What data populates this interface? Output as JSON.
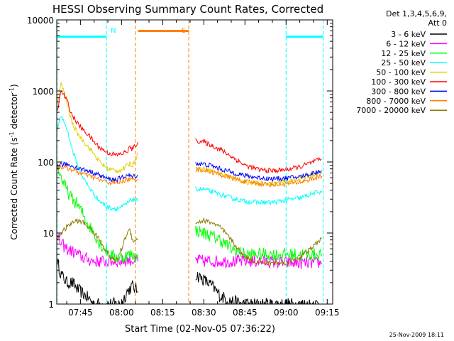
{
  "chart_data": {
    "type": "line",
    "title": "HESSI Observing Summary Count Rates, Corrected",
    "xlabel": "Start Time (02-Nov-05 07:36:22)",
    "ylabel": "Corrected Count Rate (s⁻¹ detector⁻¹)",
    "ylabel_parts": {
      "main": "Corrected Count Rate (s",
      "exp1": "-1",
      "mid": " detector",
      "exp2": "-1",
      "end": ")"
    },
    "yscale": "log",
    "ylim": [
      1,
      10000
    ],
    "xlim_minutes": [
      "07:36:22",
      "09:17:00"
    ],
    "x_ticks": [
      "07:45",
      "08:00",
      "08:15",
      "08:30",
      "08:45",
      "09:00",
      "09:15"
    ],
    "y_ticks": [
      {
        "value": 1,
        "label": "1"
      },
      {
        "value": 10,
        "label": "10"
      },
      {
        "value": 100,
        "label": "100"
      },
      {
        "value": 1000,
        "label": "1000"
      },
      {
        "value": 10000,
        "label": "10000"
      }
    ],
    "legend_placement": "right, outside plot",
    "legend_header": [
      "Det 1,3,4,5,6,9,",
      "Att 0"
    ],
    "data_gaps": [
      [
        "08:06:00",
        "08:27:00"
      ]
    ],
    "series": [
      {
        "name": "3 - 6 keV",
        "color": "#000000",
        "points": [
          [
            "07:36:30",
            4
          ],
          [
            "07:38:00",
            2.6
          ],
          [
            "07:40:00",
            2
          ],
          [
            "07:42:00",
            2
          ],
          [
            "07:44:00",
            1.6
          ],
          [
            "07:46:00",
            1.4
          ],
          [
            "07:48:00",
            1.2
          ],
          [
            "07:50:00",
            1
          ],
          [
            "07:55:00",
            1
          ],
          [
            "08:00:00",
            1
          ],
          [
            "08:02:00",
            1.5
          ],
          [
            "08:04:00",
            1.8
          ],
          [
            "08:06:00",
            1.5
          ],
          [
            "08:27:00",
            2.6
          ],
          [
            "08:30:00",
            2.2
          ],
          [
            "08:33:00",
            1.8
          ],
          [
            "08:36:00",
            1.3
          ],
          [
            "08:40:00",
            1.1
          ],
          [
            "08:45:00",
            1
          ],
          [
            "08:50:00",
            1
          ],
          [
            "09:00:00",
            1
          ],
          [
            "09:10:00",
            1
          ],
          [
            "09:13:00",
            1
          ]
        ]
      },
      {
        "name": "6 - 12 keV",
        "color": "#ff00ff",
        "points": [
          [
            "07:36:30",
            9
          ],
          [
            "07:38:00",
            7
          ],
          [
            "07:40:00",
            6
          ],
          [
            "07:42:00",
            5.5
          ],
          [
            "07:44:00",
            5
          ],
          [
            "07:46:00",
            4.5
          ],
          [
            "07:50:00",
            4
          ],
          [
            "07:55:00",
            4
          ],
          [
            "08:00:00",
            4
          ],
          [
            "08:03:00",
            4.2
          ],
          [
            "08:06:00",
            4
          ],
          [
            "08:27:00",
            4.2
          ],
          [
            "08:30:00",
            4
          ],
          [
            "08:40:00",
            4
          ],
          [
            "08:50:00",
            4
          ],
          [
            "09:00:00",
            3.8
          ],
          [
            "09:10:00",
            3.8
          ],
          [
            "09:13:00",
            3.8
          ]
        ]
      },
      {
        "name": "12 - 25 keV",
        "color": "#00ff00",
        "points": [
          [
            "07:36:30",
            90
          ],
          [
            "07:38:00",
            60
          ],
          [
            "07:40:00",
            40
          ],
          [
            "07:42:00",
            30
          ],
          [
            "07:44:00",
            25
          ],
          [
            "07:46:00",
            18
          ],
          [
            "07:48:00",
            13
          ],
          [
            "07:50:00",
            10
          ],
          [
            "07:52:00",
            7
          ],
          [
            "07:54:00",
            6
          ],
          [
            "07:56:00",
            5
          ],
          [
            "07:58:00",
            4.5
          ],
          [
            "08:00:00",
            4.5
          ],
          [
            "08:03:00",
            5
          ],
          [
            "08:06:00",
            4.5
          ],
          [
            "08:27:00",
            11
          ],
          [
            "08:30:00",
            10
          ],
          [
            "08:33:00",
            9
          ],
          [
            "08:36:00",
            8
          ],
          [
            "08:40:00",
            6
          ],
          [
            "08:45:00",
            5
          ],
          [
            "08:50:00",
            5
          ],
          [
            "08:55:00",
            5
          ],
          [
            "09:00:00",
            5
          ],
          [
            "09:05:00",
            5
          ],
          [
            "09:10:00",
            5
          ],
          [
            "09:13:00",
            5
          ]
        ]
      },
      {
        "name": "25 - 50 keV",
        "color": "#00ffff",
        "points": [
          [
            "07:36:30",
            280
          ],
          [
            "07:38:00",
            450
          ],
          [
            "07:40:00",
            300
          ],
          [
            "07:42:00",
            150
          ],
          [
            "07:44:00",
            90
          ],
          [
            "07:46:00",
            60
          ],
          [
            "07:48:00",
            45
          ],
          [
            "07:50:00",
            35
          ],
          [
            "07:52:00",
            28
          ],
          [
            "07:55:00",
            23
          ],
          [
            "07:58:00",
            22
          ],
          [
            "08:00:00",
            23
          ],
          [
            "08:02:00",
            26
          ],
          [
            "08:04:00",
            30
          ],
          [
            "08:06:00",
            28
          ],
          [
            "08:27:00",
            42
          ],
          [
            "08:30:00",
            41
          ],
          [
            "08:33:00",
            38
          ],
          [
            "08:36:00",
            35
          ],
          [
            "08:40:00",
            31
          ],
          [
            "08:45:00",
            28
          ],
          [
            "08:50:00",
            27
          ],
          [
            "08:55:00",
            27
          ],
          [
            "09:00:00",
            29
          ],
          [
            "09:05:00",
            31
          ],
          [
            "09:10:00",
            36
          ],
          [
            "09:13:00",
            39
          ]
        ]
      },
      {
        "name": "50 - 100 keV",
        "color": "#e0d000",
        "points": [
          [
            "07:36:30",
            600
          ],
          [
            "07:38:00",
            1300
          ],
          [
            "07:40:00",
            700
          ],
          [
            "07:42:00",
            350
          ],
          [
            "07:44:00",
            250
          ],
          [
            "07:46:00",
            200
          ],
          [
            "07:48:00",
            160
          ],
          [
            "07:50:00",
            130
          ],
          [
            "07:52:00",
            100
          ],
          [
            "07:55:00",
            80
          ],
          [
            "07:58:00",
            75
          ],
          [
            "08:00:00",
            78
          ],
          [
            "08:02:00",
            88
          ],
          [
            "08:03:00",
            95
          ],
          [
            "08:04:00",
            90
          ],
          [
            "08:05:00",
            110
          ],
          [
            "08:06:00",
            130
          ],
          [
            "08:27:00",
            82
          ],
          [
            "08:30:00",
            80
          ],
          [
            "08:33:00",
            75
          ],
          [
            "08:36:00",
            70
          ],
          [
            "08:40:00",
            60
          ],
          [
            "08:45:00",
            52
          ],
          [
            "08:50:00",
            50
          ],
          [
            "08:55:00",
            50
          ],
          [
            "09:00:00",
            52
          ],
          [
            "09:05:00",
            58
          ],
          [
            "09:10:00",
            66
          ],
          [
            "09:13:00",
            72
          ]
        ]
      },
      {
        "name": "100 - 300 keV",
        "color": "#ff0000",
        "points": [
          [
            "07:36:30",
            500
          ],
          [
            "07:38:00",
            1000
          ],
          [
            "07:40:00",
            750
          ],
          [
            "07:42:00",
            450
          ],
          [
            "07:44:00",
            350
          ],
          [
            "07:46:00",
            280
          ],
          [
            "07:48:00",
            240
          ],
          [
            "07:50:00",
            190
          ],
          [
            "07:52:00",
            160
          ],
          [
            "07:55:00",
            135
          ],
          [
            "07:58:00",
            125
          ],
          [
            "08:00:00",
            130
          ],
          [
            "08:02:00",
            140
          ],
          [
            "08:03:00",
            160
          ],
          [
            "08:04:00",
            150
          ],
          [
            "08:05:00",
            170
          ],
          [
            "08:06:00",
            190
          ],
          [
            "08:27:00",
            200
          ],
          [
            "08:30:00",
            190
          ],
          [
            "08:33:00",
            170
          ],
          [
            "08:36:00",
            150
          ],
          [
            "08:40:00",
            120
          ],
          [
            "08:45:00",
            90
          ],
          [
            "08:50:00",
            78
          ],
          [
            "08:55:00",
            75
          ],
          [
            "09:00:00",
            78
          ],
          [
            "09:05:00",
            85
          ],
          [
            "09:10:00",
            100
          ],
          [
            "09:13:00",
            110
          ]
        ]
      },
      {
        "name": "300 - 800 keV",
        "color": "#0000ff",
        "points": [
          [
            "07:36:30",
            88
          ],
          [
            "07:38:00",
            92
          ],
          [
            "07:40:00",
            92
          ],
          [
            "07:42:00",
            88
          ],
          [
            "07:44:00",
            82
          ],
          [
            "07:46:00",
            78
          ],
          [
            "07:48:00",
            75
          ],
          [
            "07:50:00",
            70
          ],
          [
            "07:52:00",
            65
          ],
          [
            "07:55:00",
            58
          ],
          [
            "07:58:00",
            56
          ],
          [
            "08:00:00",
            60
          ],
          [
            "08:02:00",
            65
          ],
          [
            "08:04:00",
            62
          ],
          [
            "08:06:00",
            65
          ],
          [
            "08:27:00",
            95
          ],
          [
            "08:30:00",
            93
          ],
          [
            "08:33:00",
            88
          ],
          [
            "08:36:00",
            80
          ],
          [
            "08:40:00",
            72
          ],
          [
            "08:45:00",
            64
          ],
          [
            "08:50:00",
            60
          ],
          [
            "08:55:00",
            58
          ],
          [
            "09:00:00",
            59
          ],
          [
            "09:05:00",
            62
          ],
          [
            "09:10:00",
            70
          ],
          [
            "09:13:00",
            76
          ]
        ]
      },
      {
        "name": "800 - 7000 keV",
        "color": "#ff8000",
        "points": [
          [
            "07:36:30",
            85
          ],
          [
            "07:38:00",
            85
          ],
          [
            "07:40:00",
            82
          ],
          [
            "07:42:00",
            78
          ],
          [
            "07:44:00",
            72
          ],
          [
            "07:46:00",
            68
          ],
          [
            "07:48:00",
            64
          ],
          [
            "07:50:00",
            60
          ],
          [
            "07:52:00",
            56
          ],
          [
            "07:55:00",
            52
          ],
          [
            "07:58:00",
            50
          ],
          [
            "08:00:00",
            53
          ],
          [
            "08:02:00",
            57
          ],
          [
            "08:04:00",
            56
          ],
          [
            "08:06:00",
            58
          ],
          [
            "08:27:00",
            78
          ],
          [
            "08:30:00",
            77
          ],
          [
            "08:33:00",
            72
          ],
          [
            "08:36:00",
            66
          ],
          [
            "08:40:00",
            60
          ],
          [
            "08:45:00",
            53
          ],
          [
            "08:50:00",
            50
          ],
          [
            "08:55:00",
            48
          ],
          [
            "09:00:00",
            49
          ],
          [
            "09:05:00",
            52
          ],
          [
            "09:10:00",
            58
          ],
          [
            "09:13:00",
            63
          ]
        ]
      },
      {
        "name": "7000 - 20000 keV",
        "color": "#8b7a00",
        "points": [
          [
            "07:36:30",
            8
          ],
          [
            "07:38:00",
            10
          ],
          [
            "07:40:00",
            12
          ],
          [
            "07:42:00",
            14
          ],
          [
            "07:44:00",
            15
          ],
          [
            "07:46:00",
            14
          ],
          [
            "07:48:00",
            12
          ],
          [
            "07:50:00",
            10
          ],
          [
            "07:52:00",
            8
          ],
          [
            "07:54:00",
            6
          ],
          [
            "07:56:00",
            4.5
          ],
          [
            "07:58:00",
            4
          ],
          [
            "08:00:00",
            6
          ],
          [
            "08:02:00",
            10
          ],
          [
            "08:03:00",
            11
          ],
          [
            "08:04:00",
            8
          ],
          [
            "08:06:00",
            8
          ],
          [
            "08:27:00",
            14
          ],
          [
            "08:30:00",
            15
          ],
          [
            "08:33:00",
            14
          ],
          [
            "08:36:00",
            12
          ],
          [
            "08:40:00",
            8
          ],
          [
            "08:44:00",
            5
          ],
          [
            "08:48:00",
            4
          ],
          [
            "08:52:00",
            3.8
          ],
          [
            "08:56:00",
            3.8
          ],
          [
            "09:00:00",
            3.8
          ],
          [
            "09:05:00",
            4.5
          ],
          [
            "09:10:00",
            6.5
          ],
          [
            "09:13:00",
            8.5
          ]
        ]
      }
    ],
    "spacecraft_flags": [
      {
        "label": "N",
        "color": "#00ffff",
        "bars": [
          [
            "07:36:22",
            "07:54:30"
          ],
          [
            "09:00:00",
            "09:13:30"
          ]
        ],
        "bar_level": 5800,
        "markers": [
          "07:36:30",
          "07:54:30",
          "09:00:00",
          "09:13:30"
        ]
      },
      {
        "label": "S",
        "color": "#ff8000",
        "bars": [
          [
            "08:06:00",
            "08:24:30"
          ]
        ],
        "bar_level": 7000,
        "markers": [
          "08:05:00",
          "08:24:30"
        ]
      }
    ]
  },
  "footer": {
    "timestamp": "25-Nov-2009 18:11"
  }
}
